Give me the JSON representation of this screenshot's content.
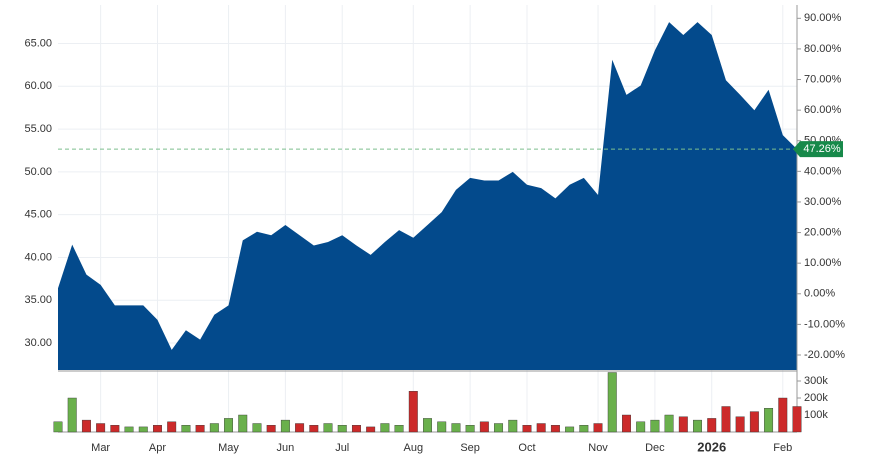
{
  "chart_data": {
    "type": "area",
    "categories": [
      null,
      null,
      null,
      "Mar",
      null,
      null,
      null,
      "Apr",
      null,
      null,
      null,
      null,
      "May",
      null,
      null,
      null,
      "Jun",
      null,
      null,
      null,
      "Jul",
      null,
      null,
      null,
      null,
      "Aug",
      null,
      null,
      null,
      "Sep",
      null,
      null,
      null,
      "Oct",
      null,
      null,
      null,
      null,
      "Nov",
      null,
      null,
      null,
      "Dec",
      null,
      null,
      null,
      "2026",
      null,
      null,
      null,
      null,
      "Feb",
      null
    ],
    "values": [
      36.4,
      41.5,
      38,
      36.8,
      34.4,
      34.4,
      34.4,
      32.7,
      29.2,
      31.5,
      30.4,
      33.3,
      34.4,
      42,
      43,
      42.6,
      43.8,
      42.6,
      41.4,
      41.8,
      42.6,
      41.4,
      40.3,
      41.8,
      43.2,
      42.3,
      43.8,
      45.3,
      47.9,
      49.3,
      49,
      49,
      50,
      48.5,
      48.1,
      46.9,
      48.5,
      49.3,
      47.3,
      63.1,
      59,
      60.1,
      64.2,
      67.5,
      66,
      67.5,
      66,
      60.7,
      59,
      57.2,
      59.6,
      54.3,
      52.66
    ],
    "color": "#034a8c",
    "ylim": [
      26.85,
      69.5
    ],
    "yticks": [
      {
        "value": 30,
        "label": "30.00"
      },
      {
        "value": 35,
        "label": "35.00"
      },
      {
        "value": 40,
        "label": "40.00"
      },
      {
        "value": 45,
        "label": "45.00"
      },
      {
        "value": 50,
        "label": "50.00"
      },
      {
        "value": 55,
        "label": "55.00"
      },
      {
        "value": 60,
        "label": "60.00"
      },
      {
        "value": 65,
        "label": "65.00"
      }
    ],
    "y2lim": [
      -24.9,
      94.35
    ],
    "y2ticks": [
      {
        "value": -20,
        "label": "-20.00%"
      },
      {
        "value": -10,
        "label": "-10.00%"
      },
      {
        "value": 0,
        "label": "0.00%"
      },
      {
        "value": 10,
        "label": "10.00%"
      },
      {
        "value": 20,
        "label": "20.00%"
      },
      {
        "value": 30,
        "label": "30.00%"
      },
      {
        "value": 40,
        "label": "40.00%"
      },
      {
        "value": 50,
        "label": "50.00%"
      },
      {
        "value": 60,
        "label": "60.00%"
      },
      {
        "value": 70,
        "label": "70.00%"
      },
      {
        "value": 80,
        "label": "80.00%"
      },
      {
        "value": 90,
        "label": "90.00%"
      }
    ],
    "annotation": {
      "value": 47.26,
      "label": "47.26%",
      "axis": "y2",
      "color": "#17894a"
    },
    "grid": true,
    "volume": {
      "values": [
        60000,
        200000,
        70000,
        50000,
        40000,
        30000,
        30000,
        40000,
        60000,
        40000,
        40000,
        50000,
        80000,
        100000,
        50000,
        40000,
        70000,
        50000,
        40000,
        50000,
        40000,
        40000,
        30000,
        50000,
        40000,
        240000,
        80000,
        60000,
        50000,
        40000,
        60000,
        50000,
        70000,
        40000,
        50000,
        40000,
        30000,
        40000,
        50000,
        350000,
        100000,
        60000,
        70000,
        100000,
        90000,
        70000,
        80000,
        150000,
        90000,
        120000,
        140000,
        200000,
        150000
      ],
      "ylim": [
        0,
        353000
      ],
      "yticks": [
        {
          "value": 100000,
          "label": "100k"
        },
        {
          "value": 200000,
          "label": "200k"
        },
        {
          "value": 300000,
          "label": "300k"
        }
      ],
      "up_color": "#6ab04c",
      "down_color": "#cc2a2a"
    }
  }
}
